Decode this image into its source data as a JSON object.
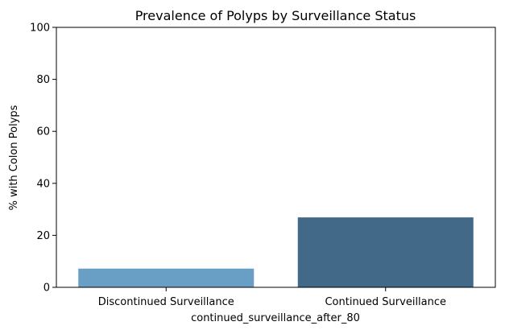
{
  "chart_data": {
    "type": "bar",
    "title": "Prevalence of Polyps by Surveillance Status",
    "xlabel": "continued_surveillance_after_80",
    "ylabel": "% with Colon Polyps",
    "categories": [
      "Discontinued Surveillance",
      "Continued Surveillance"
    ],
    "values": [
      7.2,
      26.9
    ],
    "ylim": [
      0,
      100
    ],
    "yticks": [
      "0",
      "20",
      "40",
      "60",
      "80",
      "100"
    ],
    "bar_colors": [
      "#6a9fc5",
      "#426987"
    ],
    "grid": false,
    "legend": "none"
  }
}
